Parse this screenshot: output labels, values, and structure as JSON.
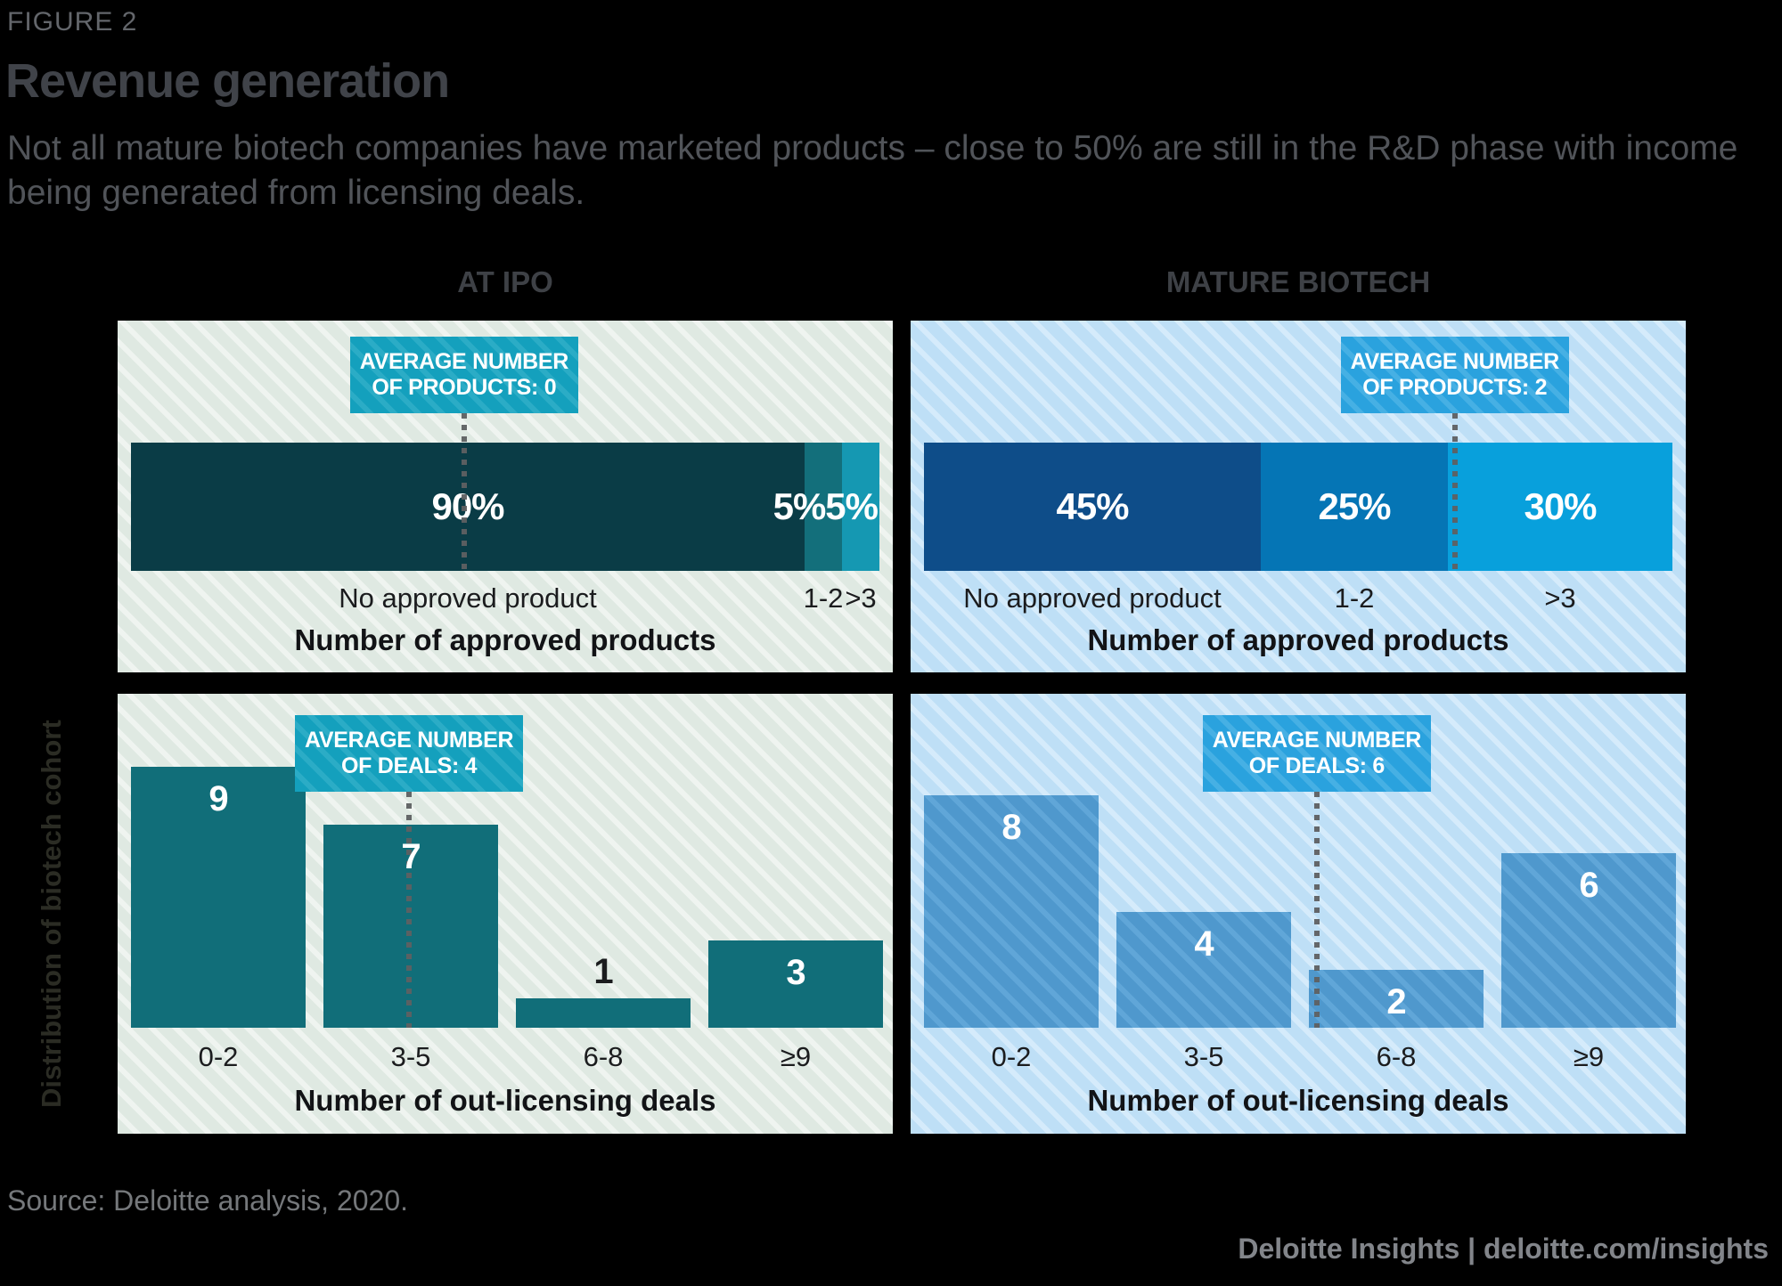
{
  "figure": {
    "eyebrow": "FIGURE 2",
    "title": "Revenue generation",
    "subtitle": "Not all mature biotech companies have marketed products – close to 50% are still in the R&D phase with income being generated from licensing deals."
  },
  "columns": [
    {
      "title": "AT IPO"
    },
    {
      "title": "MATURE BIOTECH"
    }
  ],
  "side_label": "Distribution of biotech cohort",
  "source": "Source: Deloitte analysis, 2020.",
  "footer": "Deloitte Insights | deloitte.com/insights",
  "colors": {
    "background": "#000000",
    "panel_green_base": "#DFE9E2",
    "panel_green_stripe": "#EFF4F0",
    "panel_blue_base": "#BEDFF6",
    "panel_blue_stripe": "#D5EBFB",
    "teal_annotation_box": "#14A0BD",
    "blue_annotation_box": "#2AA2DE",
    "teal_dark": "#0A3C46",
    "teal_mid": "#136F7B",
    "teal_light": "#1598B2",
    "blue_dark": "#0E4D89",
    "blue_mid": "#0575B5",
    "blue_light": "#08A0DC",
    "deal_bar_teal": "#116E79",
    "deal_bar_blue": "#4F98CD",
    "marker_dots": "#5E6062",
    "header_text": "#404349",
    "muted_text": "#75787B",
    "footer_text": "#82858A"
  },
  "chart_data": [
    {
      "id": "at-ipo-approved-products",
      "type": "bar",
      "variant": "stacked-horizontal",
      "group": "AT IPO",
      "xlabel": "Number of approved products",
      "categories": [
        "No approved product",
        "1-2",
        ">3"
      ],
      "values": [
        90,
        5,
        5
      ],
      "unit": "%",
      "segment_colors": [
        "#0A3C46",
        "#136F7B",
        "#1598B2"
      ],
      "annotation": "AVERAGE NUMBER OF PRODUCTS: 0",
      "annotation_line1": "AVERAGE NUMBER",
      "annotation_line2": "OF PRODUCTS: 0",
      "annotation_value": 0,
      "marker_x_frac": 0.447
    },
    {
      "id": "mature-biotech-approved-products",
      "type": "bar",
      "variant": "stacked-horizontal",
      "group": "MATURE BIOTECH",
      "xlabel": "Number of approved products",
      "categories": [
        "No approved product",
        "1-2",
        ">3"
      ],
      "values": [
        45,
        25,
        30
      ],
      "unit": "%",
      "segment_colors": [
        "#0E4D89",
        "#0575B5",
        "#08A0DC"
      ],
      "annotation": "AVERAGE NUMBER OF PRODUCTS: 2",
      "annotation_line1": "AVERAGE NUMBER",
      "annotation_line2": "OF PRODUCTS: 2",
      "annotation_value": 2,
      "marker_x_frac": 0.702
    },
    {
      "id": "at-ipo-out-licensing-deals",
      "type": "bar",
      "variant": "vertical",
      "group": "AT IPO",
      "xlabel": "Number of out-licensing deals",
      "ylabel": "Distribution of biotech cohort",
      "categories": [
        "0-2",
        "3-5",
        "6-8",
        "≥9"
      ],
      "values": [
        9,
        7,
        1,
        3
      ],
      "bar_color": "#116E79",
      "striped": false,
      "annotation": "AVERAGE NUMBER OF DEALS: 4",
      "annotation_line1": "AVERAGE NUMBER",
      "annotation_line2": "OF DEALS: 4",
      "annotation_value": 4,
      "marker_x_frac": 0.376
    },
    {
      "id": "mature-biotech-out-licensing-deals",
      "type": "bar",
      "variant": "vertical",
      "group": "MATURE BIOTECH",
      "xlabel": "Number of out-licensing deals",
      "ylabel": "Distribution of biotech cohort",
      "categories": [
        "0-2",
        "3-5",
        "6-8",
        "≥9"
      ],
      "values": [
        8,
        4,
        2,
        6
      ],
      "bar_color": "#4F98CD",
      "striped": true,
      "annotation": "AVERAGE NUMBER OF DEALS: 6",
      "annotation_line1": "AVERAGE NUMBER",
      "annotation_line2": "OF DEALS: 6",
      "annotation_value": 6,
      "marker_x_frac": 0.524
    }
  ]
}
